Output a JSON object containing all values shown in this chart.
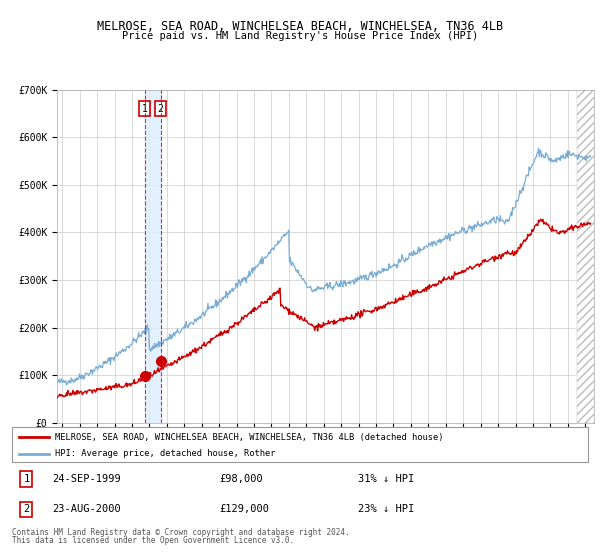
{
  "title": "MELROSE, SEA ROAD, WINCHELSEA BEACH, WINCHELSEA, TN36 4LB",
  "subtitle": "Price paid vs. HM Land Registry's House Price Index (HPI)",
  "legend_line1": "MELROSE, SEA ROAD, WINCHELSEA BEACH, WINCHELSEA, TN36 4LB (detached house)",
  "legend_line2": "HPI: Average price, detached house, Rother",
  "red_color": "#cc0000",
  "blue_color": "#7aadd4",
  "sale1_date": "24-SEP-1999",
  "sale1_price": 98000,
  "sale1_pct": "31% ↓ HPI",
  "sale2_date": "23-AUG-2000",
  "sale2_price": 129000,
  "sale2_pct": "23% ↓ HPI",
  "footnote1": "Contains HM Land Registry data © Crown copyright and database right 2024.",
  "footnote2": "This data is licensed under the Open Government Licence v3.0.",
  "ylim": [
    0,
    700000
  ],
  "yticks": [
    0,
    100000,
    200000,
    300000,
    400000,
    500000,
    600000,
    700000
  ],
  "ytick_labels": [
    "£0",
    "£100K",
    "£200K",
    "£300K",
    "£400K",
    "£500K",
    "£600K",
    "£700K"
  ],
  "xlim_start": 1994.7,
  "xlim_end": 2025.5,
  "hatch_start": 2024.5,
  "xticks": [
    1995,
    1996,
    1997,
    1998,
    1999,
    2000,
    2001,
    2002,
    2003,
    2004,
    2005,
    2006,
    2007,
    2008,
    2009,
    2010,
    2011,
    2012,
    2013,
    2014,
    2015,
    2016,
    2017,
    2018,
    2019,
    2020,
    2021,
    2022,
    2023,
    2024,
    2025
  ],
  "marker1_x": 1999.73,
  "marker1_y": 98000,
  "marker2_x": 2000.64,
  "marker2_y": 129000,
  "vline1_x": 1999.73,
  "vline2_x": 2000.64
}
